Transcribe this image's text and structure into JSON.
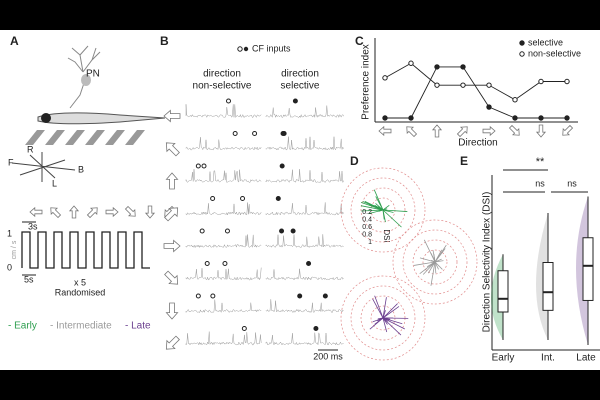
{
  "panels": {
    "A": {
      "label": "A",
      "neuron": "PN",
      "compass": [
        "F",
        "R",
        "B",
        "L"
      ],
      "time_bar": "3s",
      "speed_unit": "cm / s",
      "speed_high": "1",
      "speed_low": "0",
      "time_scale": "5s",
      "repeat": "x 5",
      "order": "Randomised",
      "legend": [
        "- Early",
        "- Intermediate",
        "- Late"
      ]
    },
    "B": {
      "label": "B",
      "cf": "CF inputs",
      "col1": [
        "direction",
        "non-selective"
      ],
      "col2": [
        "direction",
        "selective"
      ],
      "scale": "200 ms"
    },
    "D": {
      "label": "D",
      "ticks": [
        "0.2",
        "0.4",
        "0.6",
        "0.8",
        "1"
      ],
      "axis": "DSI"
    },
    "E": {
      "label": "E",
      "annotations": [
        "**",
        "ns",
        "ns"
      ]
    }
  },
  "chart_data": [
    {
      "type": "line",
      "panel": "C",
      "ylabel": "Preference index",
      "xlabel": "Direction",
      "label": "C",
      "categories": [
        null,
        null,
        null,
        null,
        null,
        null,
        null,
        null
      ],
      "ylim": [
        0,
        1
      ],
      "series": [
        {
          "name": "selective",
          "color": "#222222",
          "fill": "#222222",
          "values": [
            0,
            0,
            0.7,
            0.7,
            0.15,
            0,
            0,
            0
          ]
        },
        {
          "name": "non-selective",
          "color": "#222222",
          "fill": "#ffffff",
          "values": [
            0.55,
            0.75,
            0.45,
            0.45,
            0.45,
            0.25,
            0.5,
            0.5
          ]
        }
      ]
    },
    {
      "type": "box",
      "panel": "E",
      "ylabel": "Direction Selectivity Index (DSI)",
      "ylim": [
        0,
        1
      ],
      "series": [
        {
          "name": "Early",
          "color": "#2e9e4f",
          "whislo": 0.03,
          "q1": 0.2,
          "median": 0.28,
          "q3": 0.45,
          "whishi": 0.55
        },
        {
          "name": "Int.",
          "color": "#9a9a9a",
          "whislo": 0.03,
          "q1": 0.21,
          "median": 0.32,
          "q3": 0.5,
          "whishi": 0.8
        },
        {
          "name": "Late",
          "color": "#6b3f8f",
          "whislo": 0,
          "q1": 0.27,
          "median": 0.48,
          "q3": 0.65,
          "whishi": 0.9
        }
      ]
    }
  ]
}
